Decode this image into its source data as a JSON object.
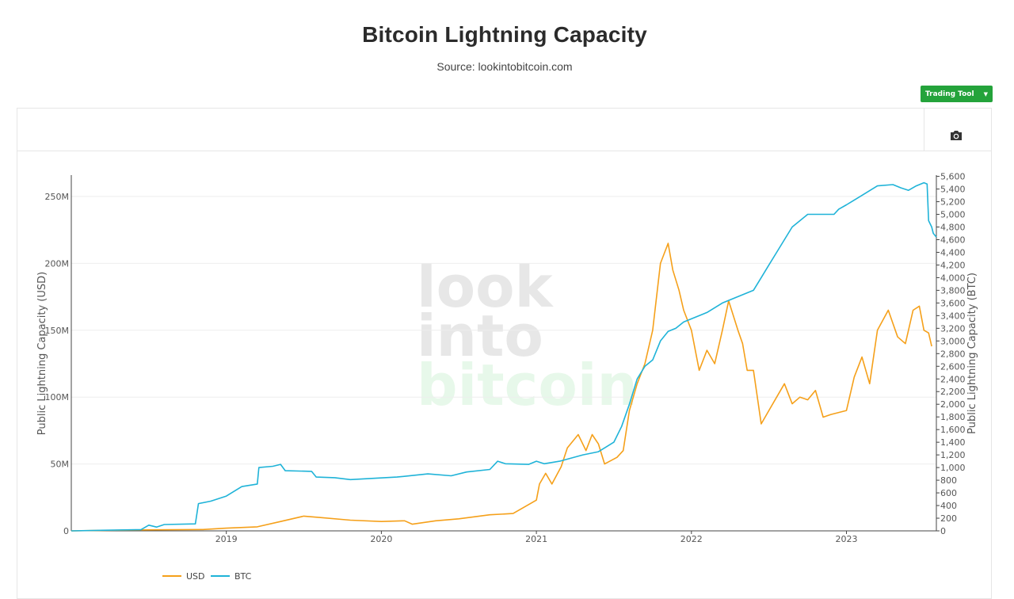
{
  "page": {
    "title": "Bitcoin Lightning Capacity",
    "subtitle": "Source: lookintobitcoin.com",
    "trading_tool_label": "Trading Tool"
  },
  "icons": {
    "camera": "camera-icon",
    "caret": "caret-down-icon"
  },
  "watermark": {
    "line1": "look",
    "line2": "into",
    "line3": "bitcoin"
  },
  "colors": {
    "usd": "#f5a01a",
    "btc": "#1fb3d8",
    "button": "#24a33b",
    "watermark_gray": "#e7e7e7",
    "watermark_green": "#e7f8ea"
  },
  "chart_data": {
    "type": "line",
    "title": "Bitcoin Lightning Capacity",
    "x_ticks": [
      "2019",
      "2020",
      "2021",
      "2022",
      "2023"
    ],
    "x_range": [
      2018.0,
      2023.58
    ],
    "y_left": {
      "label": "Public Lightning Capacity (USD)",
      "range": [
        0,
        266000000
      ],
      "ticks": [
        0,
        50000000,
        100000000,
        150000000,
        200000000,
        250000000
      ],
      "tick_labels": [
        "0",
        "50M",
        "100M",
        "150M",
        "200M",
        "250M"
      ]
    },
    "y_right": {
      "label": "Public Lightning Capacity (BTC)",
      "range": [
        0,
        5620
      ],
      "ticks": [
        0,
        200,
        400,
        600,
        800,
        1000,
        1200,
        1400,
        1600,
        1800,
        2000,
        2200,
        2400,
        2600,
        2800,
        3000,
        3200,
        3400,
        3600,
        3800,
        4000,
        4200,
        4400,
        4600,
        4800,
        5000,
        5200,
        5400,
        5600
      ],
      "tick_labels": [
        "0",
        "200",
        "400",
        "600",
        "800",
        "1,000",
        "1,200",
        "1,400",
        "1,600",
        "1,800",
        "2,000",
        "2,200",
        "2,400",
        "2,600",
        "2,800",
        "3,000",
        "3,200",
        "3,400",
        "3,600",
        "3,800",
        "4,000",
        "4,200",
        "4,400",
        "4,600",
        "4,800",
        "5,000",
        "5,200",
        "5,400",
        "5,600"
      ]
    },
    "grid": true,
    "legend": {
      "position": "bottom-left"
    },
    "series": [
      {
        "name": "USD",
        "axis": "left",
        "color": "#f5a01a",
        "points": [
          [
            2018.0,
            0
          ],
          [
            2018.45,
            700000
          ],
          [
            2018.85,
            1000000
          ],
          [
            2019.0,
            2000000
          ],
          [
            2019.2,
            3000000
          ],
          [
            2019.35,
            7000000
          ],
          [
            2019.5,
            11000000
          ],
          [
            2019.6,
            10000000
          ],
          [
            2019.8,
            8000000
          ],
          [
            2020.0,
            7000000
          ],
          [
            2020.15,
            7500000
          ],
          [
            2020.2,
            5000000
          ],
          [
            2020.35,
            7500000
          ],
          [
            2020.5,
            9000000
          ],
          [
            2020.7,
            12000000
          ],
          [
            2020.85,
            13000000
          ],
          [
            2021.0,
            23000000
          ],
          [
            2021.02,
            35000000
          ],
          [
            2021.06,
            43000000
          ],
          [
            2021.1,
            35000000
          ],
          [
            2021.16,
            48000000
          ],
          [
            2021.2,
            62000000
          ],
          [
            2021.27,
            72000000
          ],
          [
            2021.32,
            60000000
          ],
          [
            2021.36,
            72000000
          ],
          [
            2021.4,
            65000000
          ],
          [
            2021.44,
            50000000
          ],
          [
            2021.52,
            55000000
          ],
          [
            2021.56,
            60000000
          ],
          [
            2021.6,
            90000000
          ],
          [
            2021.65,
            110000000
          ],
          [
            2021.7,
            125000000
          ],
          [
            2021.75,
            150000000
          ],
          [
            2021.8,
            200000000
          ],
          [
            2021.85,
            215000000
          ],
          [
            2021.88,
            195000000
          ],
          [
            2021.92,
            180000000
          ],
          [
            2021.95,
            165000000
          ],
          [
            2022.0,
            150000000
          ],
          [
            2022.05,
            120000000
          ],
          [
            2022.1,
            135000000
          ],
          [
            2022.15,
            125000000
          ],
          [
            2022.2,
            150000000
          ],
          [
            2022.24,
            172000000
          ],
          [
            2022.3,
            150000000
          ],
          [
            2022.33,
            140000000
          ],
          [
            2022.36,
            120000000
          ],
          [
            2022.4,
            120000000
          ],
          [
            2022.45,
            80000000
          ],
          [
            2022.5,
            90000000
          ],
          [
            2022.55,
            100000000
          ],
          [
            2022.6,
            110000000
          ],
          [
            2022.65,
            95000000
          ],
          [
            2022.7,
            100000000
          ],
          [
            2022.75,
            98000000
          ],
          [
            2022.8,
            105000000
          ],
          [
            2022.85,
            85000000
          ],
          [
            2022.9,
            87000000
          ],
          [
            2023.0,
            90000000
          ],
          [
            2023.05,
            115000000
          ],
          [
            2023.1,
            130000000
          ],
          [
            2023.15,
            110000000
          ],
          [
            2023.2,
            150000000
          ],
          [
            2023.27,
            165000000
          ],
          [
            2023.33,
            145000000
          ],
          [
            2023.38,
            140000000
          ],
          [
            2023.43,
            165000000
          ],
          [
            2023.47,
            168000000
          ],
          [
            2023.5,
            150000000
          ],
          [
            2023.53,
            148000000
          ],
          [
            2023.55,
            138000000
          ]
        ]
      },
      {
        "name": "BTC",
        "axis": "right",
        "color": "#1fb3d8",
        "points": [
          [
            2018.0,
            0
          ],
          [
            2018.45,
            20
          ],
          [
            2018.5,
            90
          ],
          [
            2018.55,
            60
          ],
          [
            2018.6,
            100
          ],
          [
            2018.8,
            110
          ],
          [
            2018.82,
            430
          ],
          [
            2018.9,
            470
          ],
          [
            2019.0,
            550
          ],
          [
            2019.1,
            700
          ],
          [
            2019.2,
            740
          ],
          [
            2019.21,
            1000
          ],
          [
            2019.3,
            1020
          ],
          [
            2019.35,
            1050
          ],
          [
            2019.38,
            950
          ],
          [
            2019.55,
            940
          ],
          [
            2019.58,
            850
          ],
          [
            2019.7,
            840
          ],
          [
            2019.8,
            810
          ],
          [
            2019.95,
            830
          ],
          [
            2020.1,
            850
          ],
          [
            2020.3,
            900
          ],
          [
            2020.45,
            870
          ],
          [
            2020.55,
            930
          ],
          [
            2020.7,
            970
          ],
          [
            2020.75,
            1100
          ],
          [
            2020.8,
            1060
          ],
          [
            2020.95,
            1050
          ],
          [
            2021.0,
            1100
          ],
          [
            2021.05,
            1060
          ],
          [
            2021.15,
            1100
          ],
          [
            2021.3,
            1200
          ],
          [
            2021.4,
            1250
          ],
          [
            2021.5,
            1400
          ],
          [
            2021.55,
            1650
          ],
          [
            2021.6,
            2000
          ],
          [
            2021.65,
            2400
          ],
          [
            2021.7,
            2600
          ],
          [
            2021.75,
            2700
          ],
          [
            2021.8,
            3000
          ],
          [
            2021.85,
            3150
          ],
          [
            2021.9,
            3200
          ],
          [
            2021.95,
            3300
          ],
          [
            2022.0,
            3350
          ],
          [
            2022.1,
            3450
          ],
          [
            2022.2,
            3600
          ],
          [
            2022.3,
            3700
          ],
          [
            2022.4,
            3800
          ],
          [
            2022.45,
            4000
          ],
          [
            2022.5,
            4200
          ],
          [
            2022.55,
            4400
          ],
          [
            2022.6,
            4600
          ],
          [
            2022.65,
            4800
          ],
          [
            2022.7,
            4900
          ],
          [
            2022.75,
            5000
          ],
          [
            2022.92,
            5000
          ],
          [
            2022.95,
            5080
          ],
          [
            2023.0,
            5150
          ],
          [
            2023.1,
            5300
          ],
          [
            2023.2,
            5450
          ],
          [
            2023.3,
            5470
          ],
          [
            2023.35,
            5420
          ],
          [
            2023.4,
            5380
          ],
          [
            2023.45,
            5450
          ],
          [
            2023.5,
            5500
          ],
          [
            2023.52,
            5480
          ],
          [
            2023.53,
            4900
          ],
          [
            2023.55,
            4800
          ],
          [
            2023.56,
            4700
          ],
          [
            2023.58,
            4640
          ]
        ]
      }
    ]
  }
}
